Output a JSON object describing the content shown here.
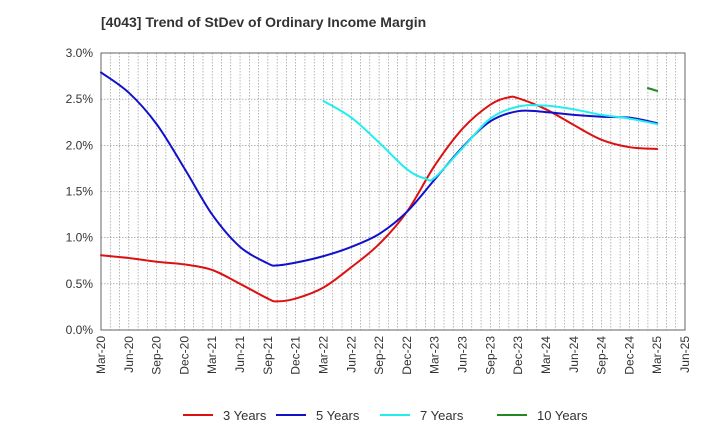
{
  "chart_data": {
    "type": "line",
    "title": "[4043]  Trend of StDev of Ordinary Income Margin",
    "xlabel": "",
    "ylabel": "",
    "ylim": [
      0.0,
      3.0
    ],
    "y_ticks": [
      0.0,
      0.5,
      1.0,
      1.5,
      2.0,
      2.5,
      3.0
    ],
    "y_tick_labels": [
      "0.0%",
      "0.5%",
      "1.0%",
      "1.5%",
      "2.0%",
      "2.5%",
      "3.0%"
    ],
    "x_range_months": [
      "2020-03",
      "2025-06"
    ],
    "x_tick_labels": [
      "Mar-20",
      "Jun-20",
      "Sep-20",
      "Dec-20",
      "Mar-21",
      "Jun-21",
      "Sep-21",
      "Dec-21",
      "Mar-22",
      "Jun-22",
      "Sep-22",
      "Dec-22",
      "Mar-23",
      "Jun-23",
      "Sep-23",
      "Dec-23",
      "Mar-24",
      "Jun-24",
      "Sep-24",
      "Dec-24",
      "Mar-25",
      "Jun-25"
    ],
    "grid": true,
    "legend_position": "bottom",
    "series": [
      {
        "name": "3 Years",
        "color": "#dd1111",
        "points": [
          [
            "Mar-20",
            0.81
          ],
          [
            "Jun-20",
            0.78
          ],
          [
            "Sep-20",
            0.74
          ],
          [
            "Dec-20",
            0.71
          ],
          [
            "Mar-21",
            0.65
          ],
          [
            "Jun-21",
            0.5
          ],
          [
            "Sep-21",
            0.34
          ],
          [
            "Oct-21",
            0.31
          ],
          [
            "Dec-21",
            0.34
          ],
          [
            "Mar-22",
            0.46
          ],
          [
            "Jun-22",
            0.68
          ],
          [
            "Sep-22",
            0.93
          ],
          [
            "Dec-22",
            1.28
          ],
          [
            "Mar-23",
            1.78
          ],
          [
            "Jun-23",
            2.18
          ],
          [
            "Sep-23",
            2.44
          ],
          [
            "Nov-23",
            2.52
          ],
          [
            "Dec-23",
            2.51
          ],
          [
            "Mar-24",
            2.39
          ],
          [
            "Jun-24",
            2.22
          ],
          [
            "Sep-24",
            2.06
          ],
          [
            "Dec-24",
            1.98
          ],
          [
            "Mar-25",
            1.96
          ]
        ]
      },
      {
        "name": "5 Years",
        "color": "#1111cc",
        "points": [
          [
            "Mar-20",
            2.79
          ],
          [
            "Jun-20",
            2.57
          ],
          [
            "Sep-20",
            2.23
          ],
          [
            "Dec-20",
            1.75
          ],
          [
            "Mar-21",
            1.25
          ],
          [
            "Jun-21",
            0.9
          ],
          [
            "Sep-21",
            0.72
          ],
          [
            "Oct-21",
            0.7
          ],
          [
            "Dec-21",
            0.73
          ],
          [
            "Mar-22",
            0.8
          ],
          [
            "Jun-22",
            0.9
          ],
          [
            "Sep-22",
            1.04
          ],
          [
            "Dec-22",
            1.28
          ],
          [
            "Mar-23",
            1.63
          ],
          [
            "Jun-23",
            1.98
          ],
          [
            "Sep-23",
            2.26
          ],
          [
            "Dec-23",
            2.37
          ],
          [
            "Mar-24",
            2.36
          ],
          [
            "Jun-24",
            2.33
          ],
          [
            "Sep-24",
            2.31
          ],
          [
            "Dec-24",
            2.3
          ],
          [
            "Mar-25",
            2.24
          ]
        ]
      },
      {
        "name": "7 Years",
        "color": "#22eeee",
        "points": [
          [
            "Mar-22",
            2.48
          ],
          [
            "Jun-22",
            2.3
          ],
          [
            "Sep-22",
            2.03
          ],
          [
            "Dec-22",
            1.74
          ],
          [
            "Feb-23",
            1.64
          ],
          [
            "Mar-23",
            1.65
          ],
          [
            "Jun-23",
            1.97
          ],
          [
            "Sep-23",
            2.29
          ],
          [
            "Dec-23",
            2.42
          ],
          [
            "Mar-24",
            2.43
          ],
          [
            "Jun-24",
            2.39
          ],
          [
            "Sep-24",
            2.33
          ],
          [
            "Dec-24",
            2.29
          ],
          [
            "Mar-25",
            2.23
          ]
        ]
      },
      {
        "name": "10 Years",
        "color": "#228822",
        "points": [
          [
            "Feb-25",
            2.62
          ],
          [
            "Mar-25",
            2.59
          ]
        ]
      }
    ]
  }
}
